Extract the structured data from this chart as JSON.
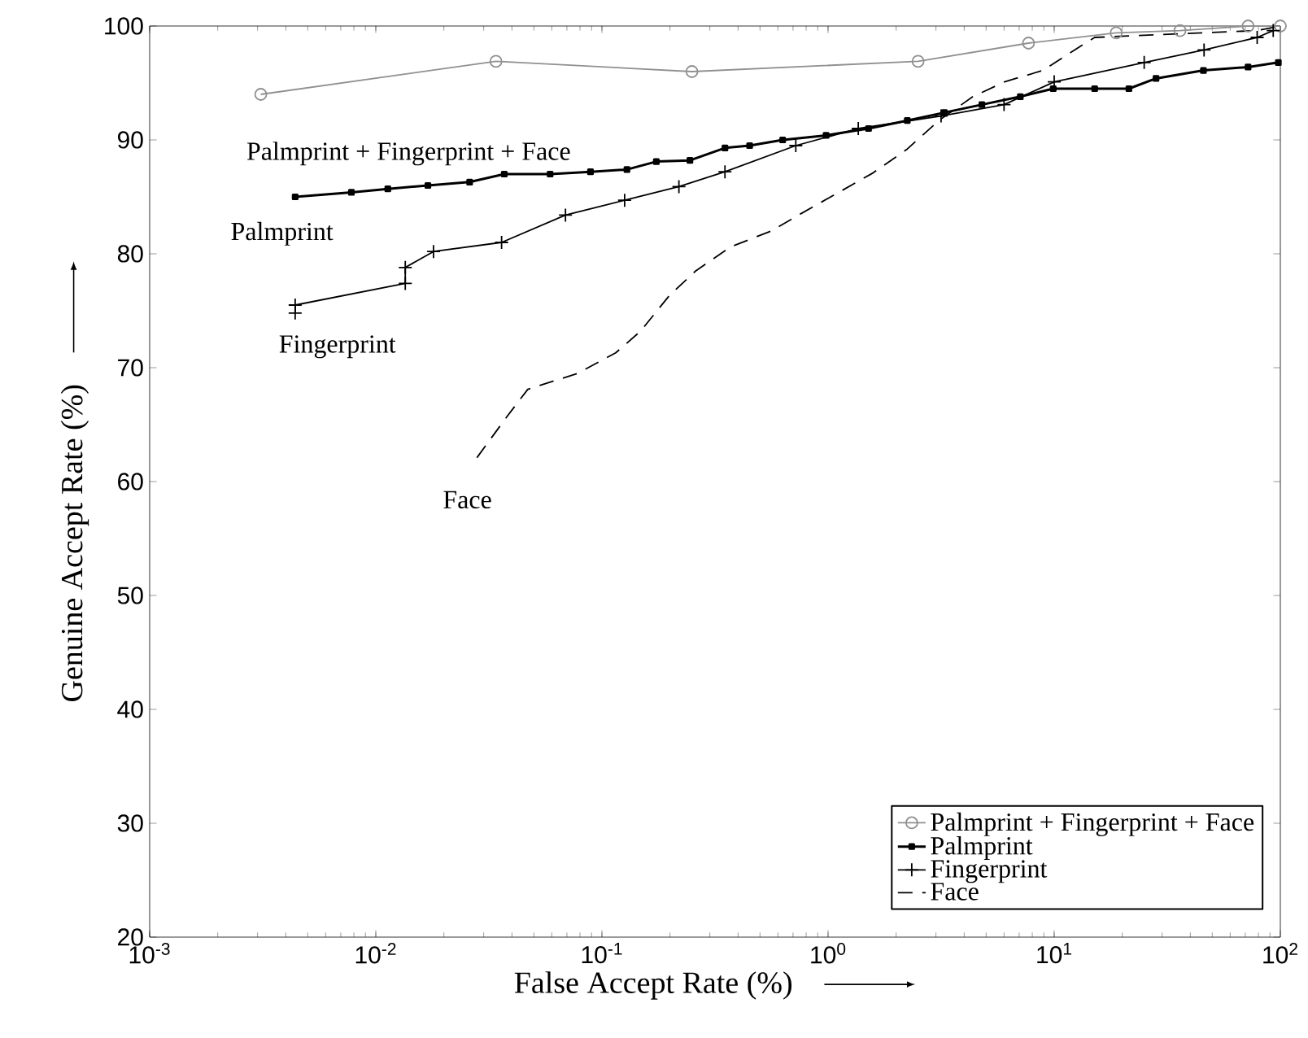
{
  "chart_data": {
    "type": "line",
    "xlabel": "False Accept Rate (%)",
    "ylabel": "Genuine Accept Rate (%)",
    "log": "x",
    "xlim": [
      0.001,
      100
    ],
    "ylim": [
      20,
      100
    ],
    "xticks": [
      {
        "value": 0.001,
        "label": "10$^{-3}$"
      },
      {
        "value": 0.01,
        "label": "10$^{-2}$"
      },
      {
        "value": 0.1,
        "label": "10$^{-1}$"
      },
      {
        "value": 1,
        "label": "10$^{0}$"
      },
      {
        "value": 10,
        "label": "10$^{1}$"
      },
      {
        "value": 100,
        "label": "10$^{2}$"
      }
    ],
    "yticks": [
      20,
      30,
      40,
      50,
      60,
      70,
      80,
      90,
      100
    ],
    "grid": false,
    "legend": "bottom right",
    "series": [
      {
        "name": "Palmprint + Fingerprint + Face",
        "color": "#909090",
        "marker": "circle",
        "line_style": "solid",
        "x": [
          0.0031,
          0.034,
          0.25,
          2.5,
          7.7,
          18.8,
          36,
          72,
          100
        ],
        "values": [
          94.0,
          96.9,
          96.0,
          96.9,
          98.5,
          99.4,
          99.6,
          100,
          100
        ]
      },
      {
        "name": "Palmprint",
        "color": "#000000",
        "marker": "square",
        "line_style": "solid",
        "x": [
          0.0044,
          0.0078,
          0.0113,
          0.017,
          0.026,
          0.037,
          0.059,
          0.089,
          0.129,
          0.174,
          0.245,
          0.35,
          0.45,
          0.63,
          0.98,
          1.51,
          2.24,
          3.27,
          4.79,
          7.08,
          9.9,
          15.1,
          21.4,
          28.2,
          45.7,
          72,
          98
        ],
        "values": [
          85.0,
          85.4,
          85.7,
          86.0,
          86.3,
          87.0,
          87.0,
          87.2,
          87.4,
          88.1,
          88.2,
          89.3,
          89.5,
          90.0,
          90.4,
          91.0,
          91.7,
          92.4,
          93.1,
          93.8,
          94.5,
          94.5,
          94.5,
          95.4,
          96.1,
          96.4,
          96.8
        ]
      },
      {
        "name": "Fingerprint",
        "color": "#000000",
        "marker": "cross",
        "line_style": "solid",
        "x": [
          0.0044,
          0.0044,
          0.0135,
          0.0135,
          0.018,
          0.036,
          0.069,
          0.126,
          0.219,
          0.35,
          0.72,
          1.36,
          3.16,
          6.0,
          10.0,
          25,
          46,
          79,
          93
        ],
        "values": [
          74.8,
          75.5,
          77.4,
          78.8,
          80.2,
          81.0,
          83.4,
          84.7,
          85.9,
          87.2,
          89.5,
          91.0,
          92.1,
          93.1,
          95.1,
          96.8,
          97.9,
          99.0,
          99.6
        ]
      },
      {
        "name": "Face",
        "color": "#000000",
        "marker": "none",
        "line_style": "dashed",
        "x": [
          0.028,
          0.038,
          0.047,
          0.078,
          0.115,
          0.148,
          0.2,
          0.26,
          0.37,
          0.56,
          0.74,
          1.07,
          1.58,
          2.24,
          3.09,
          4.37,
          6.03,
          8.91,
          12.3,
          15.1,
          79,
          100
        ],
        "values": [
          62.1,
          65.7,
          68.1,
          69.5,
          71.3,
          73.2,
          76.4,
          78.5,
          80.6,
          82.0,
          83.4,
          85.2,
          87.1,
          89.2,
          91.7,
          93.8,
          95.1,
          96.1,
          97.9,
          99.0,
          99.6,
          100
        ]
      }
    ],
    "annotations": [
      "Palmprint + Fingerprint + Face",
      "Palmprint",
      "Fingerprint",
      "Face"
    ]
  }
}
